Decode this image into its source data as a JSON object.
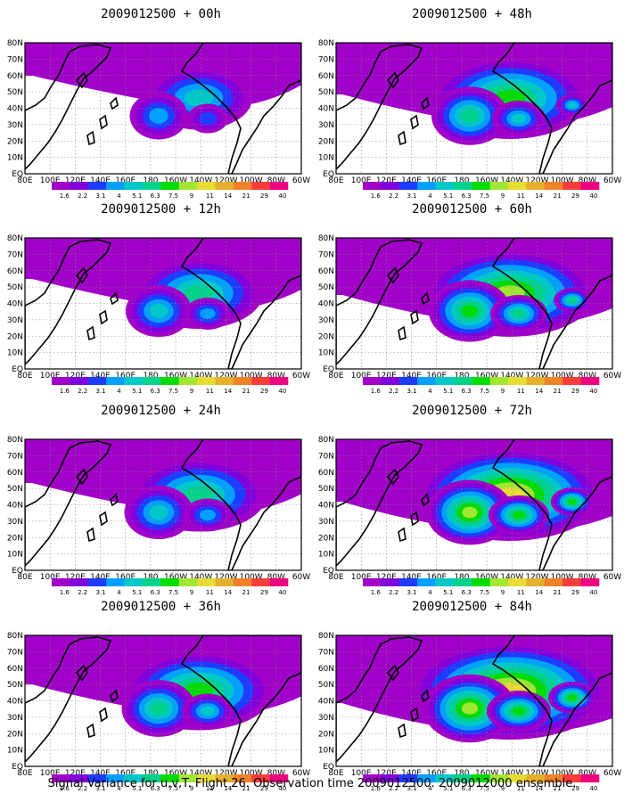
{
  "caption": "Signal Variance for u,v,T. Flight 26. Observation time 2009012500. 2009012000 ensemble.",
  "panels": [
    {
      "title": "2009012500 + 00h",
      "intensity": 0.25
    },
    {
      "title": "2009012500 + 48h",
      "intensity": 0.6
    },
    {
      "title": "2009012500 + 12h",
      "intensity": 0.4
    },
    {
      "title": "2009012500 + 60h",
      "intensity": 0.7
    },
    {
      "title": "2009012500 + 24h",
      "intensity": 0.45
    },
    {
      "title": "2009012500 + 72h",
      "intensity": 0.8
    },
    {
      "title": "2009012500 + 36h",
      "intensity": 0.55
    },
    {
      "title": "2009012500 + 84h",
      "intensity": 0.9
    }
  ],
  "lat_labels": [
    "80N",
    "70N",
    "60N",
    "50N",
    "40N",
    "30N",
    "20N",
    "10N",
    "EQ"
  ],
  "lon_labels": [
    "80E",
    "100E",
    "120E",
    "140E",
    "160E",
    "180",
    "160W",
    "140W",
    "120W",
    "100W",
    "80W",
    "60W"
  ],
  "legend": {
    "labels": [
      "1.6",
      "2.2",
      "3.1",
      "4",
      "5.1",
      "6.3",
      "7.5",
      "9",
      "11",
      "14",
      "21",
      "29",
      "40"
    ],
    "colors": [
      "#a000c8",
      "#8200dc",
      "#1e3cff",
      "#00a0ff",
      "#00c8c8",
      "#00d28c",
      "#00dc00",
      "#a0e632",
      "#e6dc32",
      "#e6af2d",
      "#f08228",
      "#fa3c3c",
      "#f00082"
    ]
  }
}
